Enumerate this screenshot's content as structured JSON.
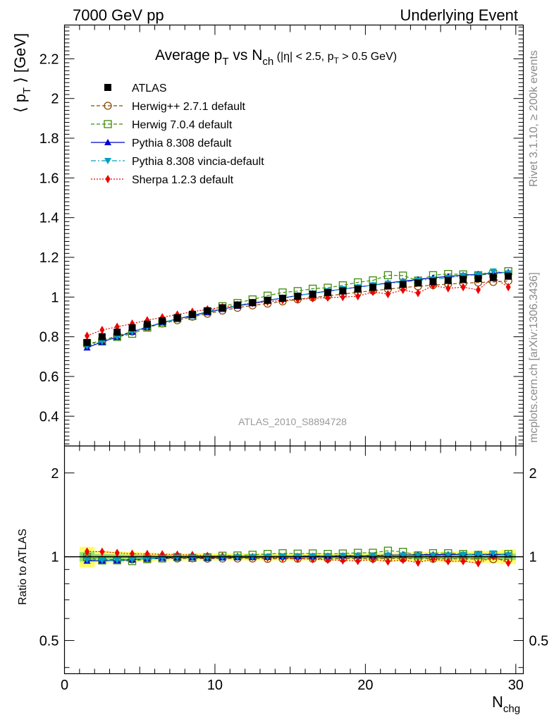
{
  "header": {
    "left": "7000 GeV pp",
    "right": "Underlying Event"
  },
  "side_labels": {
    "rivet": "Rivet 3.1.10, ≥ 200k events",
    "mcplots": "mcplots.cern.ch [arXiv:1306.3436]"
  },
  "watermark": "ATLAS_2010_S8894728",
  "title": {
    "main_a": "Average p",
    "main_a_sub": "T",
    "main_b": " vs N",
    "main_b_sub": "ch",
    "cut_a": " (|η| < 2.5, p",
    "cut_sub": "T",
    "cut_b": " > 0.5 GeV)"
  },
  "y_axis": {
    "label_a": "⟨ p",
    "label_sub": "T",
    "label_b": " ⟩ [GeV]"
  },
  "ratio_axis": {
    "label": "Ratio to ATLAS"
  },
  "x_axis": {
    "label": "N",
    "label_sub": "chg"
  },
  "chart_data": {
    "type": "scatter",
    "xlim": [
      0,
      30.5
    ],
    "x_ticks": [
      0,
      10,
      20,
      30
    ],
    "main": {
      "ylim": [
        0.25,
        2.37
      ],
      "y_ticks": [
        0.4,
        0.6,
        0.8,
        1.0,
        1.2,
        1.4,
        1.6,
        1.8,
        2.0,
        2.2
      ],
      "log": false
    },
    "ratio": {
      "ylim": [
        0.38,
        2.5
      ],
      "y_ticks": [
        0.5,
        1,
        2
      ],
      "log": true
    },
    "x": [
      1.5,
      2.5,
      3.5,
      4.5,
      5.5,
      6.5,
      7.5,
      8.5,
      9.5,
      10.5,
      11.5,
      12.5,
      13.5,
      14.5,
      15.5,
      16.5,
      17.5,
      18.5,
      19.5,
      20.5,
      21.5,
      22.5,
      23.5,
      24.5,
      25.5,
      26.5,
      27.5,
      28.5,
      29.5
    ],
    "series": [
      {
        "name": "ATLAS",
        "color": "#000000",
        "marker": "square-filled",
        "line": "none",
        "values": [
          0.771,
          0.8,
          0.823,
          0.845,
          0.863,
          0.88,
          0.896,
          0.913,
          0.931,
          0.946,
          0.96,
          0.972,
          0.984,
          0.994,
          1.004,
          1.014,
          1.023,
          1.031,
          1.04,
          1.049,
          1.056,
          1.064,
          1.071,
          1.078,
          1.084,
          1.089,
          1.093,
          1.098,
          1.105
        ]
      },
      {
        "name": "Herwig++ 2.7.1 default",
        "color": "#8b4a00",
        "marker": "circle-open",
        "line": "dashed",
        "values": [
          0.76,
          0.781,
          0.804,
          0.826,
          0.848,
          0.867,
          0.883,
          0.901,
          0.916,
          0.932,
          0.946,
          0.958,
          0.967,
          0.978,
          0.988,
          0.998,
          1.006,
          1.015,
          1.024,
          1.032,
          1.04,
          1.048,
          1.054,
          1.06,
          1.065,
          1.07,
          1.073,
          1.076,
          1.081
        ]
      },
      {
        "name": "Herwig 7.0.4 default",
        "color": "#3e8a0a",
        "marker": "square-open",
        "line": "dashed",
        "values": [
          0.768,
          0.776,
          0.799,
          0.815,
          0.846,
          0.868,
          0.893,
          0.904,
          0.927,
          0.954,
          0.97,
          0.988,
          1.007,
          1.023,
          1.03,
          1.042,
          1.047,
          1.059,
          1.074,
          1.084,
          1.11,
          1.108,
          1.083,
          1.11,
          1.116,
          1.114,
          1.11,
          1.117,
          1.13
        ]
      },
      {
        "name": "Pythia 8.308 default",
        "color": "#0000cc",
        "marker": "triangle-up",
        "line": "solid",
        "values": [
          0.745,
          0.774,
          0.798,
          0.825,
          0.849,
          0.871,
          0.89,
          0.907,
          0.923,
          0.939,
          0.955,
          0.968,
          0.982,
          0.995,
          1.008,
          1.019,
          1.03,
          1.04,
          1.05,
          1.06,
          1.071,
          1.08,
          1.088,
          1.097,
          1.104,
          1.11,
          1.115,
          1.12,
          1.125
        ]
      },
      {
        "name": "Pythia 8.308 vincia-default",
        "color": "#00a0c0",
        "marker": "triangle-down",
        "line": "dashdot",
        "values": [
          0.752,
          0.776,
          0.799,
          0.825,
          0.849,
          0.871,
          0.891,
          0.908,
          0.926,
          0.941,
          0.957,
          0.971,
          0.984,
          0.996,
          1.008,
          1.019,
          1.03,
          1.04,
          1.05,
          1.06,
          1.068,
          1.077,
          1.083,
          1.09,
          1.097,
          1.108,
          1.112,
          1.13,
          1.12
        ]
      },
      {
        "name": "Sherpa 1.2.3 default",
        "color": "#ee0000",
        "marker": "diamond",
        "line": "dotted",
        "values": [
          0.805,
          0.834,
          0.85,
          0.866,
          0.883,
          0.898,
          0.912,
          0.926,
          0.938,
          0.949,
          0.96,
          0.97,
          0.976,
          0.984,
          0.988,
          0.994,
          0.997,
          1.0,
          1.004,
          1.026,
          1.015,
          1.036,
          1.02,
          1.058,
          1.044,
          1.05,
          1.036,
          1.1,
          1.05
        ]
      }
    ]
  }
}
